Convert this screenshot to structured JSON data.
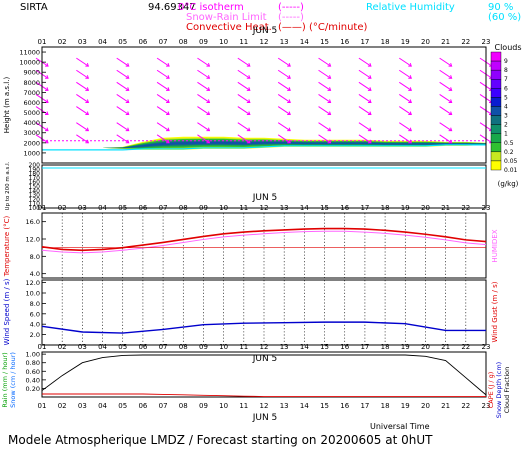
{
  "header": {
    "site": "SIRTA",
    "code": "94.69347",
    "legend": {
      "zero_isotherm": "0°C isotherm",
      "zero_isotherm_sym": "(-----)",
      "snow_rain_limit": "Snow-Rain Limit",
      "snow_rain_sym": "(-----)",
      "convective_heat": "Convective Heat.",
      "convective_sym": "(——) (°C/minute)",
      "rh_label": "Relative Humidity",
      "rh_90": "90 %",
      "rh_60": "(60 %)"
    }
  },
  "footer": {
    "universal_time": "Universal Time",
    "model_line": "Modele Atmospherique LMDZ / Forecast starting on 20200605 at 0hUT"
  },
  "colors": {
    "red": "#e00000",
    "magenta": "#ff00ff",
    "cyan": "#00e0ff",
    "blue": "#0000cc",
    "pink": "#ff66ff"
  },
  "chart_data": [
    {
      "type": "heatmap",
      "title": "",
      "date_label": "JUN  5",
      "x_hours": [
        "01",
        "02",
        "03",
        "04",
        "05",
        "06",
        "07",
        "08",
        "09",
        "10",
        "11",
        "12",
        "13",
        "14",
        "15",
        "16",
        "17",
        "18",
        "19",
        "20",
        "21",
        "22",
        "23"
      ],
      "ylabel": "Height (m a.s.l.)",
      "yticks": [
        1000,
        2000,
        3000,
        4000,
        5000,
        6000,
        7000,
        8000,
        9000,
        10000,
        11000
      ],
      "ylim": [
        0,
        11500
      ],
      "ylabel_lower": "Up to 200 m a.s.l.",
      "yticks_lower": [
        100,
        110,
        120,
        130,
        140,
        150,
        160,
        170,
        180,
        190,
        200
      ],
      "wind_barbs_hours": [
        1,
        3,
        5,
        7,
        9,
        11,
        13,
        15,
        17,
        19,
        21,
        23
      ],
      "wind_barb_levels_m": [
        10000,
        8800,
        7600,
        6400,
        5200,
        3600,
        2400
      ],
      "cloud_colorbar": {
        "label": "Clouds",
        "unit": "(g/kg)",
        "levels": [
          "9",
          "8",
          "7",
          "6",
          "5",
          "4",
          "3",
          "2",
          "1",
          "0.5",
          "0.2",
          "0.05",
          "0.01"
        ],
        "colors": [
          "#f000ff",
          "#c000ff",
          "#9000ff",
          "#6400ff",
          "#3c00ff",
          "#0a1cd0",
          "#1050a8",
          "#107080",
          "#10906a",
          "#18a84a",
          "#30c030",
          "#c8e820",
          "#ffff00"
        ]
      },
      "cloud_layer": {
        "base_m": [
          1500,
          1500,
          1500,
          1500,
          1400,
          1300,
          1300,
          1300,
          1400,
          1400,
          1400,
          1500,
          1600,
          1600,
          1600,
          1600,
          1600,
          1600,
          1600,
          1600,
          1700,
          1700,
          1800
        ],
        "top_m": [
          1500,
          1500,
          1500,
          1500,
          1600,
          2100,
          2500,
          2600,
          2600,
          2600,
          2500,
          2500,
          2400,
          2300,
          2300,
          2300,
          2300,
          2200,
          2200,
          2200,
          2100,
          2100,
          2000
        ]
      },
      "isotherm_m": [
        2200,
        2200,
        2200,
        2200,
        2200,
        2200,
        2200,
        2200,
        2200,
        2200,
        2200,
        2200,
        2200,
        2200,
        2200,
        2200,
        2200,
        2200,
        2200,
        2200,
        2200,
        2200,
        2200
      ],
      "rh90_m": [
        1300,
        1300,
        1300,
        1300,
        1300,
        1400,
        1400,
        1400,
        1500,
        1500,
        1500,
        1600,
        1700,
        1700,
        1700,
        1700,
        1700,
        1700,
        1700,
        1700,
        1800,
        1800,
        1800
      ]
    },
    {
      "type": "line",
      "date_label": "JUN  5",
      "ylabel": "Temperature (°C)",
      "ylabel_right": "HUMIDEX",
      "yticks": [
        4.0,
        8.0,
        12.0,
        16.0
      ],
      "ylim": [
        3.0,
        18.0
      ],
      "series": [
        {
          "values": [
            10.2,
            9.6,
            9.4,
            9.6,
            10.0,
            10.6,
            11.2,
            11.9,
            12.6,
            13.2,
            13.6,
            13.9,
            14.1,
            14.3,
            14.4,
            14.4,
            14.3,
            14.0,
            13.6,
            13.1,
            12.5,
            11.8,
            11.4
          ],
          "color": "#e00000"
        },
        {
          "values": [
            9.4,
            9.0,
            8.8,
            9.0,
            9.4,
            9.9,
            10.5,
            11.2,
            11.9,
            12.5,
            12.9,
            13.2,
            13.5,
            13.7,
            13.8,
            13.8,
            13.6,
            13.3,
            12.9,
            12.4,
            11.8,
            11.1,
            10.7
          ],
          "color": "#ff66ff"
        },
        {
          "values": [
            10.0,
            10.0,
            10.0,
            10.0,
            10.0,
            10.0,
            10.0,
            10.0,
            10.0,
            10.0,
            10.0,
            10.0,
            10.0,
            10.0,
            10.0,
            10.0,
            10.0,
            10.0,
            10.0,
            10.0,
            10.0,
            10.0,
            10.0
          ],
          "color": "#e00000"
        }
      ]
    },
    {
      "type": "line",
      "ylabel": "Wind Speed (m / s)",
      "ylabel_right": "Wind Gust (m / s)",
      "yticks": [
        2.0,
        4.0,
        6.0,
        8.0,
        10.0,
        12.0
      ],
      "ylim": [
        0.0,
        12.5
      ],
      "series": [
        {
          "x": [
            1,
            3,
            5,
            7,
            9,
            11,
            13,
            15,
            17,
            19,
            21,
            23
          ],
          "values": [
            3.6,
            2.5,
            2.3,
            3.0,
            3.9,
            4.2,
            4.3,
            4.4,
            4.4,
            4.1,
            2.8,
            2.8
          ],
          "color": "#0000cc"
        }
      ]
    },
    {
      "type": "line",
      "date_label": "JUN  5",
      "ylabel_left": "Rain (mm / hour)",
      "ylabel_left2": "Snow (cm / hour)",
      "ylabel_right": "CAPE (J / g)",
      "ylabel_right2": "Snow Depth (cm)",
      "ylabel_right3": "Cloud Fraction",
      "yticks": [
        "0.20",
        "0.40",
        "0.60",
        "0.80",
        "1.00"
      ],
      "ylim": [
        0.0,
        1.05
      ],
      "series": [
        {
          "values": [
            0.15,
            0.5,
            0.8,
            0.92,
            0.97,
            0.98,
            0.98,
            0.98,
            0.98,
            0.98,
            0.98,
            0.98,
            0.98,
            0.98,
            0.98,
            0.98,
            0.98,
            0.98,
            0.98,
            0.95,
            0.85,
            0.45,
            0.05
          ],
          "color": "#000000"
        },
        {
          "values": [
            0.07,
            0.07,
            0.07,
            0.07,
            0.07,
            0.07,
            0.06,
            0.05,
            0.04,
            0.03,
            0.02,
            0.01,
            0.01,
            0.01,
            0.01,
            0.01,
            0.01,
            0.01,
            0.01,
            0.01,
            0.01,
            0.01,
            0.01
          ],
          "color": "#e00000"
        }
      ]
    }
  ]
}
